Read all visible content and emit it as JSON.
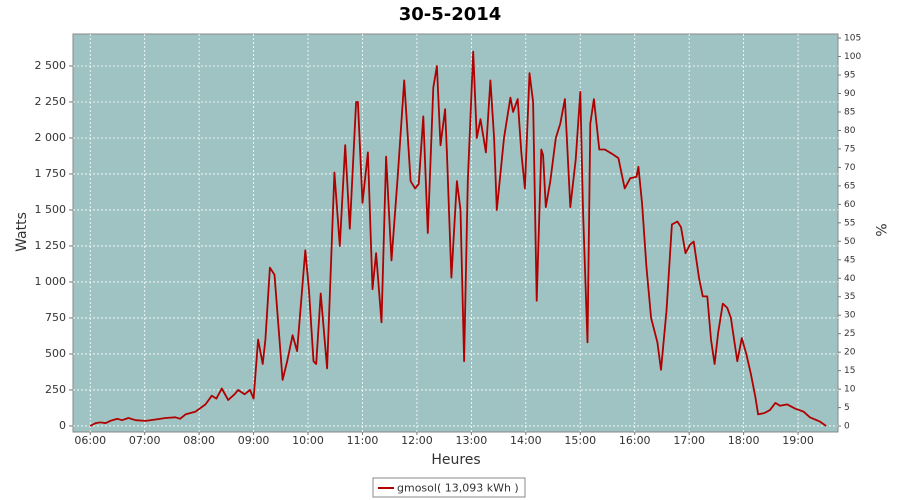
{
  "chart_data": {
    "type": "line",
    "title": "30-5-2014",
    "x_label": "Heures",
    "y_label": "Watts",
    "y2_label": "%",
    "x": [
      "06:00",
      "06:06",
      "06:11",
      "06:17",
      "06:22",
      "06:30",
      "06:35",
      "06:42",
      "06:50",
      "07:01",
      "07:12",
      "07:23",
      "07:34",
      "07:39",
      "07:45",
      "07:56",
      "08:07",
      "08:14",
      "08:19",
      "08:25",
      "08:32",
      "08:39",
      "08:43",
      "08:50",
      "08:56",
      "09:00",
      "09:05",
      "09:10",
      "09:13",
      "09:18",
      "09:23",
      "09:32",
      "09:37",
      "09:43",
      "09:48",
      "09:57",
      "10:01",
      "10:06",
      "10:09",
      "10:14",
      "10:21",
      "10:29",
      "10:35",
      "10:41",
      "10:46",
      "10:53",
      "10:55",
      "11:00",
      "11:06",
      "11:11",
      "11:15",
      "11:21",
      "11:26",
      "11:32",
      "11:39",
      "11:46",
      "11:53",
      "11:58",
      "12:02",
      "12:07",
      "12:12",
      "12:18",
      "12:22",
      "12:26",
      "12:31",
      "12:33",
      "12:38",
      "12:44",
      "12:48",
      "12:52",
      "12:56",
      "13:02",
      "13:06",
      "13:10",
      "13:16",
      "13:21",
      "13:25",
      "13:28",
      "13:36",
      "13:43",
      "13:46",
      "13:51",
      "13:55",
      "13:59",
      "14:04",
      "14:08",
      "14:12",
      "14:17",
      "14:19",
      "14:22",
      "14:27",
      "14:33",
      "14:38",
      "14:43",
      "14:49",
      "14:55",
      "15:00",
      "15:03",
      "15:08",
      "15:11",
      "15:15",
      "15:21",
      "15:27",
      "15:35",
      "15:42",
      "15:49",
      "15:55",
      "16:02",
      "16:04",
      "16:08",
      "16:13",
      "16:18",
      "16:25",
      "16:29",
      "16:35",
      "16:41",
      "16:47",
      "16:51",
      "16:56",
      "17:01",
      "17:05",
      "17:11",
      "17:15",
      "17:20",
      "17:24",
      "17:28",
      "17:32",
      "17:37",
      "17:42",
      "17:46",
      "17:53",
      "17:58",
      "18:03",
      "18:08",
      "18:13",
      "18:16",
      "18:23",
      "18:29",
      "18:35",
      "18:40",
      "18:48",
      "18:57",
      "19:06",
      "19:13",
      "19:24",
      "19:31"
    ],
    "series": [
      {
        "name": "gmosol( 13,093 kWh )",
        "color": "#b00000",
        "values": [
          0,
          20,
          25,
          20,
          35,
          50,
          40,
          55,
          40,
          35,
          45,
          55,
          60,
          50,
          80,
          100,
          150,
          210,
          190,
          260,
          180,
          220,
          250,
          220,
          250,
          190,
          600,
          430,
          600,
          1100,
          1050,
          320,
          450,
          630,
          520,
          1220,
          950,
          450,
          430,
          920,
          400,
          1760,
          1250,
          1950,
          1370,
          2250,
          2250,
          1550,
          1900,
          950,
          1200,
          720,
          1870,
          1150,
          1750,
          2400,
          1700,
          1650,
          1680,
          2150,
          1340,
          2350,
          2500,
          1950,
          2200,
          1900,
          1030,
          1700,
          1500,
          450,
          1700,
          2600,
          2000,
          2130,
          1900,
          2400,
          2000,
          1500,
          2000,
          2280,
          2180,
          2270,
          1900,
          1650,
          2450,
          2250,
          870,
          1920,
          1880,
          1520,
          1700,
          2000,
          2100,
          2270,
          1520,
          1850,
          2320,
          1500,
          580,
          2100,
          2270,
          1920,
          1920,
          1890,
          1860,
          1650,
          1720,
          1730,
          1800,
          1550,
          1100,
          750,
          580,
          390,
          800,
          1400,
          1420,
          1380,
          1200,
          1260,
          1280,
          1020,
          900,
          900,
          600,
          430,
          650,
          850,
          820,
          750,
          450,
          610,
          500,
          360,
          200,
          80,
          90,
          110,
          160,
          140,
          150,
          120,
          100,
          60,
          30,
          0
        ]
      }
    ],
    "xlim": [
      "05:41",
      "19:44"
    ],
    "xticks": [
      "06:00",
      "07:00",
      "08:00",
      "09:00",
      "10:00",
      "11:00",
      "12:00",
      "13:00",
      "14:00",
      "15:00",
      "16:00",
      "17:00",
      "18:00",
      "19:00"
    ],
    "ylim": [
      -42,
      2722
    ],
    "yticks": [
      0,
      250,
      500,
      750,
      {
        "value": 1000,
        "label": "1 000"
      },
      {
        "value": 1250,
        "label": "1 250"
      },
      {
        "value": 1500,
        "label": "1 500"
      },
      {
        "value": 1750,
        "label": "1 750"
      },
      {
        "value": 2000,
        "label": "2 000"
      },
      {
        "value": 2250,
        "label": "2 250"
      },
      {
        "value": 2500,
        "label": "2 500"
      }
    ],
    "y2lim": [
      -1.6,
      106.1
    ],
    "y2ticks": [
      0,
      5,
      10,
      15,
      20,
      25,
      30,
      35,
      40,
      45,
      50,
      55,
      60,
      65,
      70,
      75,
      80,
      85,
      90,
      95,
      100,
      105
    ],
    "grid": true,
    "background": "#9fc3c3",
    "legend": "bottom"
  }
}
